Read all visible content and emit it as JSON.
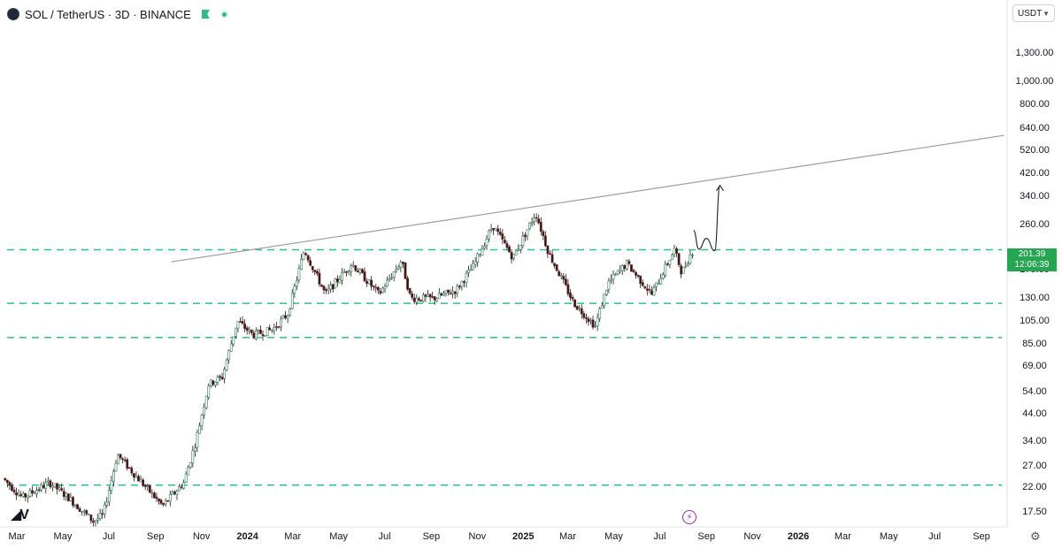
{
  "header": {
    "symbol_title": "SOL / TetherUS · 3D · BINANCE",
    "currency": "USDT"
  },
  "price_badge": {
    "price": "201.39",
    "countdown": "12:06:39"
  },
  "colors": {
    "up": "#26a69a",
    "down": "#ef5350",
    "candle_body": "#1b1b1b",
    "support_lines": "#2bc48a",
    "trendline": "#9e9e9e",
    "badge": "#26a652"
  },
  "chart_data": {
    "type": "candlestick",
    "scale": "log",
    "y_ticks": [
      "1,300.00",
      "1,000.00",
      "800.00",
      "640.00",
      "520.00",
      "420.00",
      "340.00",
      "260.00",
      "170.00",
      "130.00",
      "105.00",
      "85.00",
      "69.00",
      "54.00",
      "44.00",
      "34.00",
      "27.00",
      "22.00",
      "17.50"
    ],
    "y_tick_values": [
      1300,
      1000,
      800,
      640,
      520,
      420,
      340,
      260,
      170,
      130,
      105,
      85,
      69,
      54,
      44,
      34,
      27,
      22,
      17.5
    ],
    "ylim": [
      15.0,
      1800
    ],
    "x_ticks": [
      {
        "label": "Mar",
        "date": "2023-03-01",
        "bold": false
      },
      {
        "label": "May",
        "date": "2023-05-01",
        "bold": false
      },
      {
        "label": "Jul",
        "date": "2023-07-01",
        "bold": false
      },
      {
        "label": "Sep",
        "date": "2023-09-01",
        "bold": false
      },
      {
        "label": "Nov",
        "date": "2023-11-01",
        "bold": false
      },
      {
        "label": "2024",
        "date": "2024-01-01",
        "bold": true
      },
      {
        "label": "Mar",
        "date": "2024-03-01",
        "bold": false
      },
      {
        "label": "May",
        "date": "2024-05-01",
        "bold": false
      },
      {
        "label": "Jul",
        "date": "2024-07-01",
        "bold": false
      },
      {
        "label": "Sep",
        "date": "2024-09-01",
        "bold": false
      },
      {
        "label": "Nov",
        "date": "2024-11-01",
        "bold": false
      },
      {
        "label": "2025",
        "date": "2025-01-01",
        "bold": true
      },
      {
        "label": "Mar",
        "date": "2025-03-01",
        "bold": false
      },
      {
        "label": "May",
        "date": "2025-05-01",
        "bold": false
      },
      {
        "label": "Jul",
        "date": "2025-07-01",
        "bold": false
      },
      {
        "label": "Sep",
        "date": "2025-09-01",
        "bold": false
      },
      {
        "label": "Nov",
        "date": "2025-11-01",
        "bold": false
      },
      {
        "label": "2026",
        "date": "2026-01-01",
        "bold": true
      },
      {
        "label": "Mar",
        "date": "2026-03-01",
        "bold": false
      },
      {
        "label": "May",
        "date": "2026-05-01",
        "bold": false
      },
      {
        "label": "Jul",
        "date": "2026-07-01",
        "bold": false
      },
      {
        "label": "Sep",
        "date": "2026-09-01",
        "bold": false
      }
    ],
    "price_path": [
      [
        "2023-02-12",
        24
      ],
      [
        "2023-03-10",
        20
      ],
      [
        "2023-04-15",
        23
      ],
      [
        "2023-05-10",
        20
      ],
      [
        "2023-06-12",
        16
      ],
      [
        "2023-06-25",
        17
      ],
      [
        "2023-07-14",
        30
      ],
      [
        "2023-08-10",
        24
      ],
      [
        "2023-09-12",
        18.5
      ],
      [
        "2023-10-10",
        23
      ],
      [
        "2023-10-25",
        33
      ],
      [
        "2023-11-12",
        58
      ],
      [
        "2023-11-30",
        62
      ],
      [
        "2023-12-20",
        105
      ],
      [
        "2024-01-10",
        92
      ],
      [
        "2024-02-05",
        97
      ],
      [
        "2024-02-25",
        112
      ],
      [
        "2024-03-18",
        205
      ],
      [
        "2024-04-15",
        135
      ],
      [
        "2024-05-20",
        180
      ],
      [
        "2024-06-25",
        135
      ],
      [
        "2024-07-25",
        185
      ],
      [
        "2024-08-06",
        130
      ],
      [
        "2024-09-06",
        130
      ],
      [
        "2024-10-05",
        140
      ],
      [
        "2024-10-28",
        175
      ],
      [
        "2024-11-23",
        258
      ],
      [
        "2024-12-20",
        190
      ],
      [
        "2025-01-19",
        290
      ],
      [
        "2025-02-05",
        200
      ],
      [
        "2025-03-10",
        125
      ],
      [
        "2025-04-08",
        100
      ],
      [
        "2025-04-25",
        150
      ],
      [
        "2025-05-20",
        180
      ],
      [
        "2025-06-22",
        135
      ],
      [
        "2025-07-22",
        205
      ],
      [
        "2025-08-01",
        165
      ],
      [
        "2025-08-14",
        201.39
      ]
    ],
    "support_levels": [
      205,
      124,
      90,
      22.5
    ],
    "trendline": [
      [
        "2023-09-22",
        183
      ],
      [
        "2026-10-01",
        600
      ]
    ],
    "projection": [
      [
        "2025-08-15",
        246
      ],
      [
        "2025-08-22",
        206
      ],
      [
        "2025-09-01",
        228
      ],
      [
        "2025-09-12",
        203
      ],
      [
        "2025-09-19",
        375
      ]
    ],
    "last_price": 201.39
  }
}
